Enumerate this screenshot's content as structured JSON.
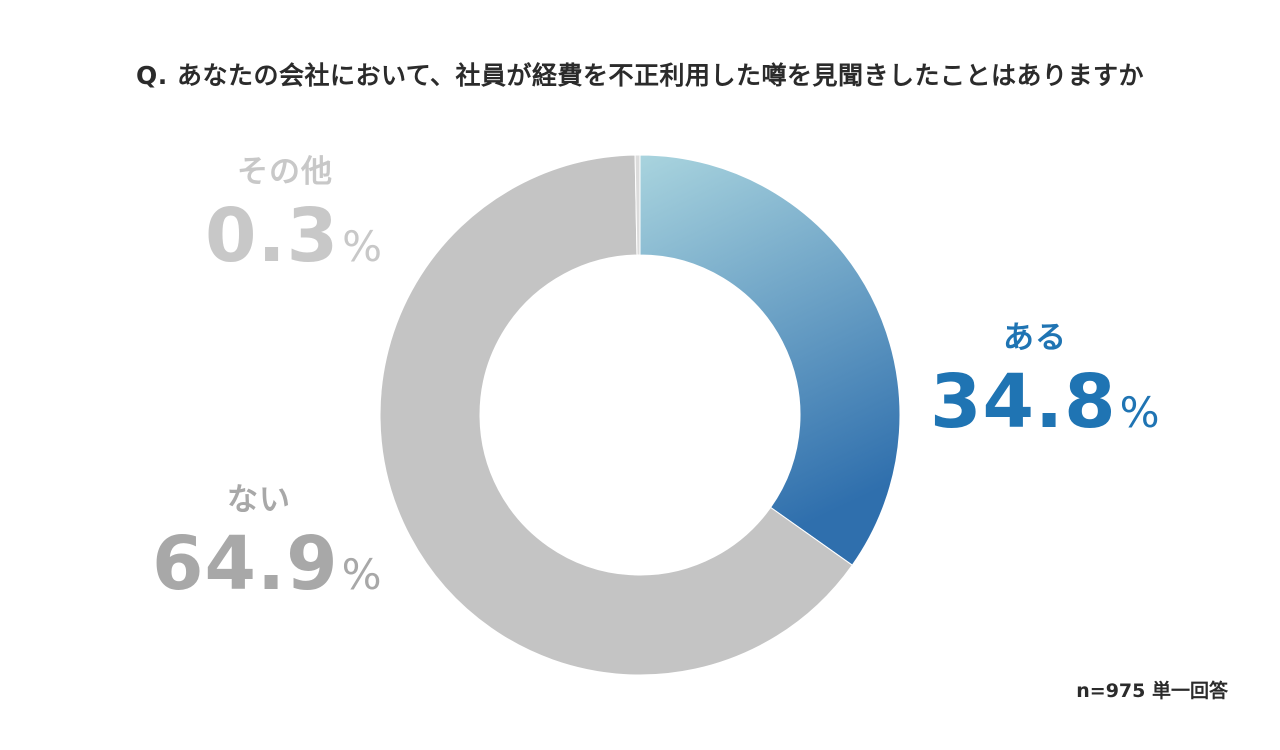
{
  "title": "Q. あなたの会社において、社員が経費を不正利用した噂を見聞きしたことはありますか",
  "note": "n=975 単一回答",
  "chart_data": {
    "type": "pie",
    "variant": "donut",
    "categories": [
      "ある",
      "ない",
      "その他"
    ],
    "values": [
      34.8,
      64.9,
      0.3
    ],
    "value_labels": [
      "34.8",
      "64.9",
      "0.3"
    ],
    "unit": "%",
    "colors": [
      "#2f6fad",
      "#c4c4c4",
      "#dcdcdc"
    ],
    "gradient_start": "#a9d4de",
    "label_colors": [
      "#1f74b3",
      "#a8a8a8",
      "#c8c8c8"
    ]
  }
}
